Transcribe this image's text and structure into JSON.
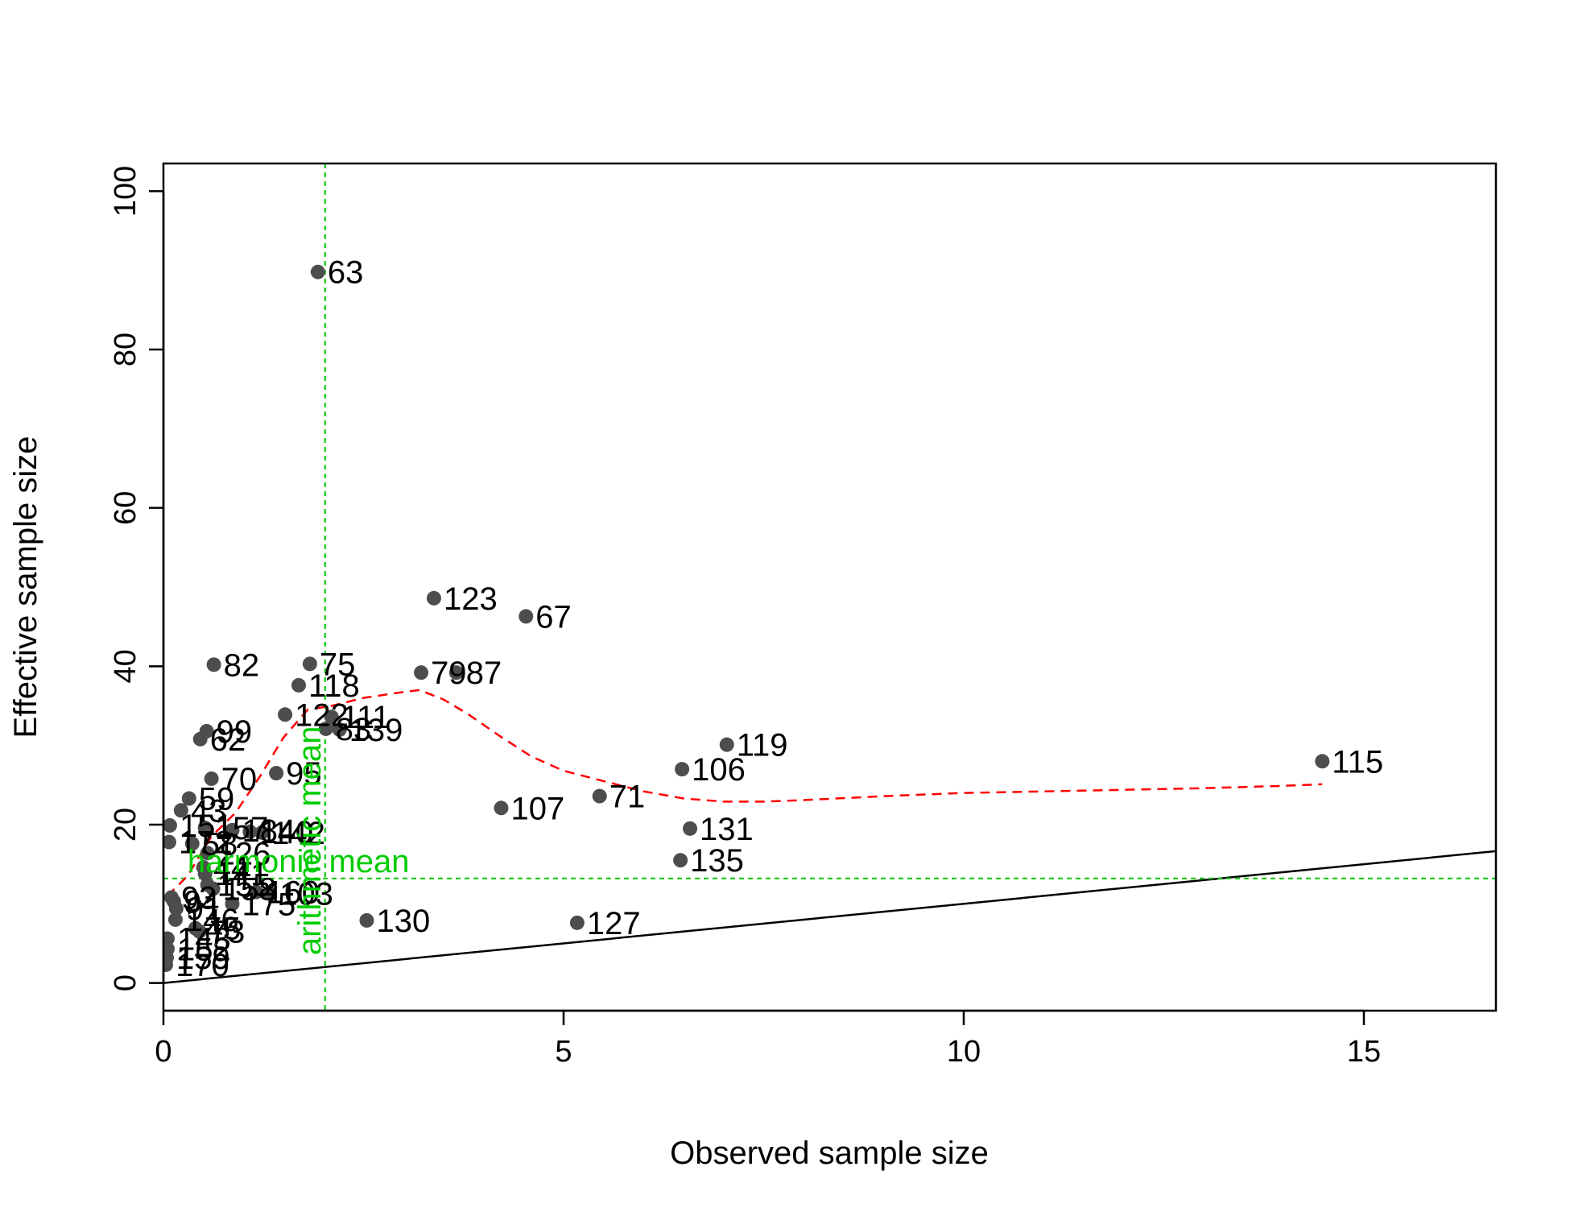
{
  "chart_data": {
    "type": "scatter",
    "xlabel": "Observed sample size",
    "ylabel": "Effective sample size",
    "xlim": [
      0,
      16.65
    ],
    "ylim": [
      0,
      100
    ],
    "x_ticks": [
      0,
      5,
      10,
      15
    ],
    "y_ticks": [
      0,
      20,
      40,
      60,
      80,
      100
    ],
    "grid": false,
    "colors": {
      "points": "#4d4d4d",
      "smooth": "#ff0000",
      "reference": "#00cc00",
      "identity": "#000000"
    },
    "points": [
      {
        "label": "63",
        "x": 1.93,
        "y": 89.8
      },
      {
        "label": "123",
        "x": 3.38,
        "y": 48.6
      },
      {
        "label": "67",
        "x": 4.53,
        "y": 46.3
      },
      {
        "label": "82",
        "x": 0.63,
        "y": 40.2
      },
      {
        "label": "75",
        "x": 1.83,
        "y": 40.3
      },
      {
        "label": "79",
        "x": 3.22,
        "y": 39.2
      },
      {
        "label": "87",
        "x": 3.66,
        "y": 39.2
      },
      {
        "label": "118",
        "x": 1.69,
        "y": 37.6
      },
      {
        "label": "122",
        "x": 1.52,
        "y": 33.9
      },
      {
        "label": "111",
        "x": 2.1,
        "y": 33.6
      },
      {
        "label": "83",
        "x": 2.03,
        "y": 32.1
      },
      {
        "label": "139",
        "x": 2.2,
        "y": 32.0
      },
      {
        "label": "99",
        "x": 0.54,
        "y": 31.8
      },
      {
        "label": "62",
        "x": 0.46,
        "y": 30.8
      },
      {
        "label": "119",
        "x": 7.04,
        "y": 30.1
      },
      {
        "label": "115",
        "x": 14.48,
        "y": 28.0
      },
      {
        "label": "106",
        "x": 6.48,
        "y": 27.0
      },
      {
        "label": "95",
        "x": 1.41,
        "y": 26.5
      },
      {
        "label": "70",
        "x": 0.6,
        "y": 25.8
      },
      {
        "label": "71",
        "x": 5.45,
        "y": 23.6
      },
      {
        "label": "59",
        "x": 0.32,
        "y": 23.3
      },
      {
        "label": "107",
        "x": 4.22,
        "y": 22.1
      },
      {
        "label": "43",
        "x": 0.22,
        "y": 21.8
      },
      {
        "label": "151",
        "x": 0.08,
        "y": 19.9
      },
      {
        "label": "157",
        "x": 0.52,
        "y": 19.6
      },
      {
        "label": "131",
        "x": 6.58,
        "y": 19.5
      },
      {
        "label": "184",
        "x": 0.86,
        "y": 19.3
      },
      {
        "label": "140",
        "x": 1.08,
        "y": 19.1
      },
      {
        "label": "142",
        "x": 1.23,
        "y": 19.0
      },
      {
        "label": "172",
        "x": 0.07,
        "y": 17.8
      },
      {
        "label": "58",
        "x": 0.36,
        "y": 17.6
      },
      {
        "label": "126",
        "x": 0.55,
        "y": 16.4
      },
      {
        "label": "135",
        "x": 6.46,
        "y": 15.5
      },
      {
        "label": "44",
        "x": 0.5,
        "y": 14.6
      },
      {
        "label": "141",
        "x": 0.52,
        "y": 13.8
      },
      {
        "label": "155",
        "x": 0.55,
        "y": 12.4
      },
      {
        "label": "158",
        "x": 0.62,
        "y": 11.9
      },
      {
        "label": "160",
        "x": 1.16,
        "y": 11.5
      },
      {
        "label": "103",
        "x": 1.33,
        "y": 11.3
      },
      {
        "label": "93",
        "x": 0.1,
        "y": 10.8
      },
      {
        "label": "94",
        "x": 0.13,
        "y": 10.3
      },
      {
        "label": "175",
        "x": 0.86,
        "y": 10.0
      },
      {
        "label": "91",
        "x": 0.16,
        "y": 9.4
      },
      {
        "label": "146",
        "x": 0.15,
        "y": 8.0
      },
      {
        "label": "130",
        "x": 2.54,
        "y": 7.9
      },
      {
        "label": "127",
        "x": 5.17,
        "y": 7.6
      },
      {
        "label": "45",
        "x": 0.4,
        "y": 6.9
      },
      {
        "label": "73",
        "x": 0.45,
        "y": 6.5
      },
      {
        "label": "143",
        "x": 0.05,
        "y": 5.6
      },
      {
        "label": "152",
        "x": 0.05,
        "y": 4.3
      },
      {
        "label": "159",
        "x": 0.04,
        "y": 3.2
      },
      {
        "label": "170",
        "x": 0.03,
        "y": 2.3
      }
    ],
    "smooth_curve": {
      "x": [
        0.05,
        0.3,
        0.6,
        0.9,
        1.2,
        1.5,
        1.8,
        2.1,
        2.5,
        2.9,
        3.2,
        3.5,
        3.8,
        4.2,
        4.6,
        5.0,
        5.5,
        6.0,
        6.5,
        7.0,
        7.5,
        8.0,
        9.0,
        10.0,
        11.0,
        12.0,
        13.0,
        14.0,
        14.48
      ],
      "y": [
        11.0,
        13.5,
        18.5,
        21.5,
        26.0,
        31.0,
        34.5,
        35.0,
        36.0,
        36.6,
        37.0,
        35.8,
        34.0,
        31.2,
        28.6,
        26.8,
        25.5,
        24.2,
        23.3,
        22.9,
        22.9,
        23.1,
        23.6,
        24.0,
        24.2,
        24.4,
        24.6,
        24.9,
        25.1
      ]
    },
    "arithmetic_mean": {
      "label": "arithmetic mean",
      "x": 2.02
    },
    "harmonic_mean": {
      "label": "harmonic mean",
      "y": 13.2
    },
    "identity_line": {
      "from": [
        0,
        0
      ],
      "to": [
        16.65,
        16.65
      ]
    }
  }
}
